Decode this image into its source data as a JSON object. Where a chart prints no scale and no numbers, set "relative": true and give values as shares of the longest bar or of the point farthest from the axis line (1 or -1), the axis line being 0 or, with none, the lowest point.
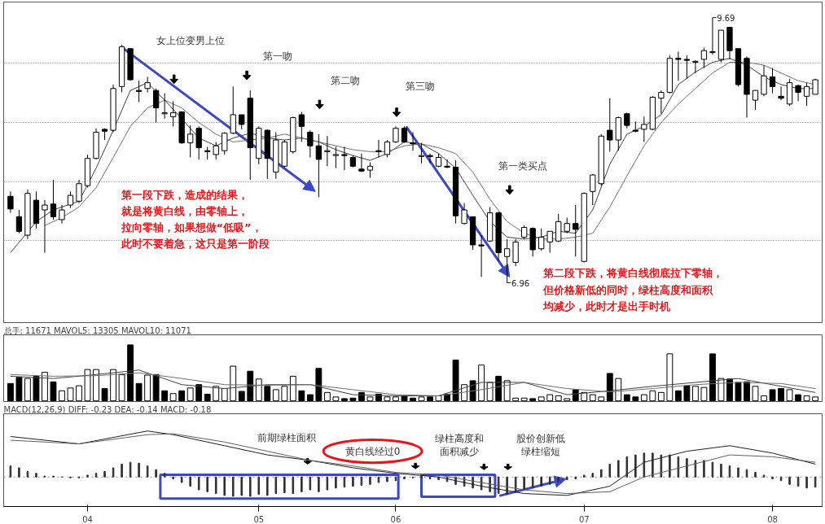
{
  "chart_data": [
    {
      "type": "candlestick",
      "categories": [
        null,
        null,
        null,
        null,
        null,
        null,
        null,
        null,
        null,
        "04",
        null,
        null,
        null,
        null,
        null,
        null,
        null,
        null,
        null,
        null,
        null,
        null,
        null,
        null,
        null,
        null,
        null,
        null,
        null,
        "05",
        null,
        null,
        null,
        null,
        null,
        null,
        null,
        null,
        null,
        null,
        null,
        null,
        null,
        null,
        null,
        "06",
        null,
        null,
        null,
        null,
        null,
        null,
        null,
        null,
        null,
        null,
        null,
        null,
        null,
        null,
        null,
        null,
        null,
        null,
        null,
        null,
        null,
        "07",
        null,
        null,
        null,
        null,
        null,
        null,
        null,
        null,
        null,
        null,
        null,
        null,
        null,
        null,
        null,
        null,
        null,
        null,
        null,
        null,
        null,
        "08",
        null,
        null,
        null,
        null,
        null
      ],
      "ohlc": [
        [
          7.85,
          7.9,
          7.68,
          7.72
        ],
        [
          7.64,
          7.71,
          7.47,
          7.49
        ],
        [
          7.45,
          7.92,
          7.41,
          7.88
        ],
        [
          7.81,
          7.9,
          7.52,
          7.57
        ],
        [
          7.71,
          7.81,
          7.27,
          7.76
        ],
        [
          7.77,
          8.02,
          7.61,
          7.64
        ],
        [
          7.61,
          7.76,
          7.57,
          7.71
        ],
        [
          7.76,
          7.9,
          7.73,
          7.86
        ],
        [
          7.8,
          8.02,
          7.78,
          7.98
        ],
        [
          7.96,
          8.28,
          7.94,
          8.24
        ],
        [
          8.24,
          8.55,
          8.23,
          8.51
        ],
        [
          8.54,
          8.55,
          8.43,
          8.52
        ],
        [
          8.53,
          9.0,
          8.51,
          8.96
        ],
        [
          8.98,
          9.41,
          8.92,
          9.39
        ],
        [
          9.37,
          9.37,
          9.04,
          9.05
        ],
        [
          8.94,
          9.04,
          8.82,
          8.93
        ],
        [
          8.96,
          9.08,
          8.92,
          9.02
        ],
        [
          8.94,
          8.96,
          8.61,
          8.76
        ],
        [
          8.7,
          8.91,
          8.65,
          8.71
        ],
        [
          8.67,
          8.83,
          8.57,
          8.71
        ],
        [
          8.72,
          8.72,
          8.39,
          8.4
        ],
        [
          8.4,
          8.58,
          8.25,
          8.49
        ],
        [
          8.55,
          8.57,
          8.23,
          8.35
        ],
        [
          8.32,
          8.36,
          8.23,
          8.31
        ],
        [
          8.28,
          8.41,
          8.23,
          8.37
        ],
        [
          8.32,
          8.51,
          8.28,
          8.5
        ],
        [
          8.5,
          8.98,
          8.49,
          8.69
        ],
        [
          8.69,
          8.69,
          8.54,
          8.59
        ],
        [
          8.86,
          8.94,
          8.02,
          8.35
        ],
        [
          8.24,
          8.57,
          8.18,
          8.55
        ],
        [
          8.53,
          8.54,
          8.03,
          8.24
        ],
        [
          8.1,
          8.51,
          8.03,
          8.43
        ],
        [
          8.16,
          8.43,
          8.15,
          8.41
        ],
        [
          8.31,
          8.67,
          8.29,
          8.66
        ],
        [
          8.69,
          8.72,
          8.41,
          8.57
        ],
        [
          8.51,
          8.53,
          8.25,
          8.37
        ],
        [
          8.37,
          8.49,
          7.84,
          8.23
        ],
        [
          8.31,
          8.47,
          8.16,
          8.32
        ],
        [
          8.27,
          8.36,
          8.14,
          8.28
        ],
        [
          8.28,
          8.36,
          8.12,
          8.27
        ],
        [
          8.25,
          8.27,
          8.15,
          8.16
        ],
        [
          8.13,
          8.29,
          8.1,
          8.11
        ],
        [
          8.12,
          8.2,
          8.04,
          8.16
        ],
        [
          8.32,
          8.43,
          8.25,
          8.31
        ],
        [
          8.28,
          8.43,
          8.25,
          8.41
        ],
        [
          8.41,
          8.57,
          8.4,
          8.55
        ],
        [
          8.55,
          8.57,
          8.4,
          8.41
        ],
        [
          8.4,
          8.51,
          8.32,
          8.39
        ],
        [
          8.26,
          8.4,
          8.19,
          8.27
        ],
        [
          8.27,
          8.29,
          8.19,
          8.26
        ],
        [
          8.16,
          8.29,
          8.15,
          8.25
        ],
        [
          8.16,
          8.23,
          8.14,
          8.15
        ],
        [
          8.15,
          8.22,
          7.57,
          7.65
        ],
        [
          7.57,
          7.78,
          7.56,
          7.71
        ],
        [
          7.64,
          7.64,
          7.3,
          7.35
        ],
        [
          7.35,
          7.45,
          7.02,
          7.34
        ],
        [
          7.39,
          7.74,
          7.38,
          7.68
        ],
        [
          7.68,
          7.69,
          7.18,
          7.27
        ],
        [
          7.23,
          7.41,
          6.96,
          7.31
        ],
        [
          7.17,
          7.41,
          7.13,
          7.38
        ],
        [
          7.43,
          7.55,
          7.41,
          7.53
        ],
        [
          7.52,
          7.53,
          7.23,
          7.3
        ],
        [
          7.31,
          7.52,
          7.29,
          7.43
        ],
        [
          7.38,
          7.49,
          7.27,
          7.49
        ],
        [
          7.39,
          7.67,
          7.38,
          7.59
        ],
        [
          7.49,
          7.63,
          7.47,
          7.57
        ],
        [
          7.57,
          7.76,
          7.23,
          7.51
        ],
        [
          7.18,
          7.89,
          7.17,
          7.88
        ],
        [
          7.9,
          8.08,
          7.76,
          8.07
        ],
        [
          7.98,
          8.49,
          7.96,
          8.47
        ],
        [
          8.53,
          8.86,
          8.31,
          8.43
        ],
        [
          8.43,
          8.67,
          8.32,
          8.66
        ],
        [
          8.7,
          8.71,
          8.55,
          8.58
        ],
        [
          8.53,
          8.62,
          8.51,
          8.52
        ],
        [
          8.54,
          8.67,
          8.41,
          8.59
        ],
        [
          8.54,
          8.88,
          8.53,
          8.87
        ],
        [
          8.86,
          8.94,
          8.7,
          8.92
        ],
        [
          8.92,
          9.3,
          8.91,
          9.27
        ],
        [
          9.27,
          9.34,
          9.04,
          9.26
        ],
        [
          9.26,
          9.3,
          9.06,
          9.25
        ],
        [
          9.23,
          9.25,
          9.12,
          9.24
        ],
        [
          9.26,
          9.38,
          9.17,
          9.35
        ],
        [
          9.33,
          9.69,
          9.31,
          9.34
        ],
        [
          9.26,
          9.56,
          9.23,
          9.56
        ],
        [
          9.59,
          9.59,
          9.26,
          9.35
        ],
        [
          9.37,
          9.37,
          8.98,
          9.0
        ],
        [
          9.27,
          9.29,
          8.66,
          8.9
        ],
        [
          8.84,
          8.94,
          8.74,
          8.94
        ],
        [
          8.9,
          9.2,
          8.88,
          9.09
        ],
        [
          9.08,
          9.17,
          8.91,
          8.98
        ],
        [
          8.88,
          8.98,
          8.84,
          8.86
        ],
        [
          8.8,
          9.06,
          8.78,
          9.02
        ],
        [
          8.99,
          9.0,
          8.83,
          8.92
        ],
        [
          8.88,
          9.02,
          8.78,
          8.98
        ],
        [
          8.9,
          9.06,
          8.9,
          9.05
        ]
      ],
      "series": [
        {
          "type": "line",
          "color": "#404040",
          "values": [
            7.27,
            null,
            null,
            7.59,
            null,
            7.71,
            null,
            null,
            7.8,
            null,
            8.14,
            null,
            8.53,
            null,
            8.94,
            null,
            9.02,
            null,
            8.84,
            null,
            8.65,
            null,
            8.45,
            null,
            8.37,
            null,
            8.45,
            null,
            8.5,
            null,
            8.45,
            null,
            8.43,
            null,
            8.45,
            null,
            8.41,
            null,
            8.33,
            null,
            8.27,
            null,
            8.22,
            null,
            8.29,
            null,
            8.41,
            null,
            8.39,
            null,
            8.29,
            null,
            8.14,
            null,
            7.86,
            null,
            7.59,
            null,
            7.43,
            null,
            7.41,
            null,
            7.43,
            null,
            7.49,
            null,
            7.47,
            null,
            7.71,
            null,
            8.18,
            null,
            8.49,
            null,
            8.57,
            null,
            8.69,
            null,
            9.0,
            null,
            9.13,
            null,
            9.23,
            null,
            9.27,
            null,
            9.2,
            null,
            9.08,
            null,
            9.0,
            null,
            8.96,
            null,
            8.96
          ]
        },
        {
          "type": "line",
          "color": "#707070",
          "values": [
            null,
            null,
            null,
            null,
            7.55,
            null,
            7.63,
            null,
            7.74,
            null,
            7.94,
            null,
            8.25,
            null,
            8.57,
            null,
            8.76,
            null,
            8.84,
            null,
            8.76,
            null,
            8.61,
            null,
            8.49,
            null,
            8.41,
            null,
            8.43,
            null,
            8.45,
            null,
            8.49,
            null,
            8.45,
            null,
            8.41,
            null,
            8.37,
            null,
            8.33,
            null,
            8.31,
            null,
            8.31,
            null,
            8.37,
            null,
            8.39,
            null,
            8.35,
            null,
            8.29,
            null,
            8.1,
            null,
            7.82,
            null,
            7.59,
            null,
            7.47,
            null,
            7.41,
            null,
            7.41,
            null,
            7.43,
            null,
            7.47,
            null,
            7.74,
            null,
            8.06,
            null,
            8.37,
            null,
            8.61,
            null,
            8.8,
            null,
            8.96,
            null,
            9.12,
            null,
            9.23,
            null,
            9.23,
            null,
            9.2,
            null,
            9.12,
            null,
            9.04,
            null,
            9.0
          ]
        }
      ],
      "ylim": [
        6.55,
        9.85
      ],
      "yticks": [
        {
          "value": 7.399,
          "label": null
        },
        {
          "value": 8.003,
          "label": null
        },
        {
          "value": 8.607,
          "label": null
        },
        {
          "value": 9.219,
          "label": null
        }
      ],
      "grid": "y",
      "tick_labels": false,
      "annotations": [
        "女上位变男上位",
        "第一吻",
        "第二吻",
        "第三吻",
        "第一类买点",
        "第一段下跌，造成的结果，就是将黄白线，由零轴上，拉向零轴，如果想做“低吸”，此时不要着急，这只是第一阶段",
        "第二段下跌，将黄白线彻底拉下零轴，但价格新低的同时，绿柱高度和面积均减少，此时才是出手时机",
        "9.69",
        "6.96"
      ]
    },
    {
      "type": "bar",
      "title": "总手: 11671 MAVOL5: 13305 MAVOL10: 11071",
      "relative": true,
      "categories": [
        null,
        null,
        null,
        null,
        null,
        null,
        null,
        null,
        null,
        "04",
        null,
        null,
        null,
        null,
        null,
        null,
        null,
        null,
        null,
        null,
        null,
        null,
        null,
        null,
        null,
        null,
        null,
        null,
        null,
        "05",
        null,
        null,
        null,
        null,
        null,
        null,
        null,
        null,
        null,
        null,
        null,
        null,
        null,
        null,
        null,
        "06",
        null,
        null,
        null,
        null,
        null,
        null,
        null,
        null,
        null,
        null,
        null,
        null,
        null,
        null,
        null,
        null,
        null,
        null,
        null,
        null,
        null,
        "07",
        null,
        null,
        null,
        null,
        null,
        null,
        null,
        null,
        null,
        null,
        null,
        null,
        null,
        null,
        null,
        null,
        null,
        null,
        null,
        null,
        null,
        "08",
        null,
        null,
        null,
        null,
        null
      ],
      "series": [
        {
          "type": "bar",
          "values": [
            0.31,
            0.42,
            0.4,
            0.44,
            0.51,
            0.34,
            0.18,
            0.23,
            0.27,
            0.56,
            0.56,
            0.22,
            0.56,
            0.47,
            1,
            0.31,
            0.46,
            0.47,
            0.18,
            0.13,
            0.18,
            0.23,
            0.29,
            0.12,
            0.26,
            0.22,
            0.62,
            0.17,
            0.53,
            0.39,
            0.26,
            0.2,
            0.26,
            0.44,
            0.18,
            0.11,
            0.58,
            0.15,
            0.07,
            0.04,
            0.05,
            0.15,
            0.07,
            0.12,
            0.07,
            0.07,
            0.09,
            0.05,
            0.07,
            0.07,
            0.09,
            0.12,
            0.73,
            0.29,
            0.36,
            0.64,
            0.33,
            0.44,
            0.36,
            0.05,
            0.05,
            0.04,
            0.07,
            0.11,
            0.09,
            0.04,
            0.2,
            0.15,
            0.11,
            0.07,
            0.49,
            0.4,
            0.11,
            0.07,
            0.11,
            0.18,
            0.15,
            0.84,
            0.18,
            0.27,
            0.26,
            0.24,
            0.84,
            0.4,
            0.39,
            0.33,
            0.34,
            0.26,
            0.09,
            0.2,
            0.22,
            0.2,
            0.11,
            0.09,
            0.07
          ],
          "colors": [
            "#000000",
            "#000000",
            "#ffffff",
            "#000000",
            "#ffffff",
            "#000000",
            "#ffffff",
            "#ffffff",
            "#ffffff",
            "#ffffff",
            "#ffffff",
            "#000000",
            "#ffffff",
            "#ffffff",
            "#000000",
            "#000000",
            "#ffffff",
            "#000000",
            "#000000",
            "#ffffff",
            "#000000",
            "#ffffff",
            "#000000",
            "#000000",
            "#ffffff",
            "#ffffff",
            "#ffffff",
            "#000000",
            "#000000",
            "#ffffff",
            "#000000",
            "#ffffff",
            "#ffffff",
            "#ffffff",
            "#000000",
            "#000000",
            "#000000",
            "#ffffff",
            "#ffffff",
            "#000000",
            "#000000",
            "#000000",
            "#ffffff",
            "#000000",
            "#ffffff",
            "#ffffff",
            "#000000",
            "#000000",
            "#ffffff",
            "#000000",
            "#ffffff",
            "#000000",
            "#000000",
            "#ffffff",
            "#000000",
            "#ffffff",
            "#ffffff",
            "#000000",
            "#ffffff",
            "#ffffff",
            "#ffffff",
            "#000000",
            "#ffffff",
            "#ffffff",
            "#ffffff",
            "#ffffff",
            "#000000",
            "#ffffff",
            "#ffffff",
            "#ffffff",
            "#000000",
            "#ffffff",
            "#000000",
            "#000000",
            "#ffffff",
            "#ffffff",
            "#ffffff",
            "#ffffff",
            "#000000",
            "#000000",
            "#ffffff",
            "#ffffff",
            "#000000",
            "#ffffff",
            "#000000",
            "#000000",
            "#000000",
            "#ffffff",
            "#ffffff",
            "#000000",
            "#000000",
            "#ffffff",
            "#000000",
            "#ffffff",
            "#ffffff"
          ]
        },
        {
          "type": "line",
          "color": "#404040",
          "values": [
            0.44,
            null,
            null,
            null,
            null,
            0.4,
            null,
            null,
            null,
            null,
            0.47,
            null,
            null,
            null,
            null,
            0.55,
            null,
            null,
            null,
            null,
            0.29,
            null,
            null,
            null,
            null,
            0.22,
            null,
            null,
            null,
            null,
            0.29,
            null,
            null,
            null,
            null,
            0.29,
            null,
            null,
            null,
            null,
            0.11,
            null,
            null,
            null,
            null,
            0.09,
            null,
            null,
            null,
            null,
            0.09,
            null,
            null,
            null,
            null,
            0.33,
            null,
            null,
            null,
            null,
            0.33,
            null,
            null,
            null,
            null,
            0.11,
            null,
            null,
            null,
            null,
            0.18,
            null,
            null,
            null,
            null,
            0.26,
            null,
            null,
            null,
            null,
            0.33,
            null,
            null,
            null,
            null,
            0.4,
            null,
            null,
            null,
            null,
            0.26,
            null,
            null,
            null,
            0.15
          ]
        },
        {
          "type": "line",
          "color": "#707070",
          "values": [
            0.47,
            null,
            null,
            null,
            null,
            0.44,
            null,
            null,
            null,
            null,
            0.45,
            null,
            null,
            null,
            null,
            0.5,
            null,
            null,
            null,
            null,
            0.4,
            null,
            null,
            null,
            null,
            0.29,
            null,
            null,
            null,
            null,
            0.28,
            null,
            null,
            null,
            null,
            0.29,
            null,
            null,
            null,
            null,
            0.2,
            null,
            null,
            null,
            null,
            0.11,
            null,
            null,
            null,
            null,
            0.09,
            null,
            null,
            null,
            null,
            0.2,
            null,
            null,
            null,
            null,
            0.33,
            null,
            null,
            null,
            null,
            0.22,
            null,
            null,
            null,
            null,
            0.16,
            null,
            null,
            null,
            null,
            0.22,
            null,
            null,
            null,
            null,
            0.29,
            null,
            null,
            null,
            null,
            0.33,
            null,
            null,
            null,
            null,
            0.31,
            null,
            null,
            null,
            0.22
          ]
        }
      ],
      "tick_labels": false
    },
    {
      "type": "bar",
      "title": "MACD(12,26,9) DIFF: -0.23 DEA: -0.14 MACD: -0.18",
      "relative": true,
      "categories": [
        null,
        null,
        null,
        null,
        null,
        null,
        null,
        null,
        null,
        "04",
        null,
        null,
        null,
        null,
        null,
        null,
        null,
        null,
        null,
        null,
        null,
        null,
        null,
        null,
        null,
        null,
        null,
        null,
        null,
        "05",
        null,
        null,
        null,
        null,
        null,
        null,
        null,
        null,
        null,
        null,
        null,
        null,
        null,
        null,
        null,
        "06",
        null,
        null,
        null,
        null,
        null,
        null,
        null,
        null,
        null,
        null,
        null,
        null,
        null,
        null,
        null,
        null,
        null,
        null,
        null,
        null,
        null,
        "07",
        null,
        null,
        null,
        null,
        null,
        null,
        null,
        null,
        null,
        null,
        null,
        null,
        null,
        null,
        null,
        null,
        null,
        null,
        null,
        null,
        null,
        "08",
        null,
        null,
        null,
        null,
        null
      ],
      "series": [
        {
          "type": "bar",
          "color": "#303030",
          "values": [
            0.24,
            0.2,
            0.12,
            0.08,
            0.02,
            0.02,
            0,
            -0.02,
            -0.02,
            0.04,
            0.08,
            0.12,
            0.2,
            0.28,
            0.32,
            0.3,
            0.24,
            0.16,
            0.08,
            -0.04,
            -0.12,
            -0.2,
            -0.28,
            -0.32,
            -0.36,
            -0.4,
            -0.42,
            -0.4,
            -0.42,
            -0.38,
            -0.4,
            -0.36,
            -0.34,
            -0.36,
            -0.32,
            -0.28,
            -0.32,
            -0.28,
            -0.24,
            -0.22,
            -0.2,
            -0.18,
            -0.16,
            -0.12,
            -0.1,
            -0.08,
            -0.04,
            -0.02,
            -0.02,
            -0.04,
            -0.06,
            -0.1,
            -0.16,
            -0.2,
            -0.24,
            -0.28,
            -0.32,
            -0.36,
            -0.38,
            -0.32,
            -0.28,
            -0.24,
            -0.2,
            -0.16,
            -0.1,
            -0.06,
            -0.04,
            0.04,
            0.08,
            0.16,
            0.28,
            0.36,
            0.44,
            0.48,
            0.52,
            0.52,
            0.48,
            0.48,
            0.44,
            0.4,
            0.36,
            0.36,
            0.32,
            0.28,
            0.24,
            0.2,
            0.16,
            0.1,
            0.04,
            -0.04,
            -0.08,
            -0.16,
            -0.2,
            -0.24,
            -0.22
          ]
        },
        {
          "type": "line",
          "color": "#202020",
          "values": [
            0.88,
            null,
            null,
            null,
            null,
            null,
            null,
            null,
            0.72,
            null,
            null,
            null,
            null,
            null,
            null,
            null,
            1,
            null,
            null,
            0.92,
            null,
            null,
            null,
            null,
            null,
            0.68,
            null,
            null,
            null,
            null,
            0.48,
            null,
            null,
            null,
            null,
            0.36,
            null,
            null,
            null,
            null,
            0.2,
            null,
            null,
            null,
            null,
            0.08,
            null,
            null,
            null,
            null,
            0,
            null,
            null,
            null,
            null,
            -0.2,
            null,
            null,
            null,
            null,
            -0.36,
            null,
            null,
            null,
            null,
            -0.4,
            null,
            null,
            null,
            null,
            -0.2,
            null,
            null,
            null,
            0.32,
            null,
            null,
            null,
            null,
            0.56,
            null,
            null,
            null,
            null,
            0.68,
            null,
            null,
            null,
            null,
            0.52,
            null,
            null,
            null,
            null,
            0.28
          ]
        },
        {
          "type": "line",
          "color": "#606060",
          "values": [
            0.8,
            null,
            null,
            null,
            null,
            null,
            null,
            null,
            0.72,
            null,
            null,
            null,
            null,
            null,
            null,
            null,
            0.92,
            null,
            null,
            0.94,
            null,
            null,
            null,
            null,
            null,
            0.76,
            null,
            null,
            null,
            null,
            0.56,
            null,
            null,
            null,
            null,
            0.36,
            null,
            null,
            null,
            null,
            0.24,
            null,
            null,
            null,
            null,
            0.1,
            null,
            null,
            null,
            null,
            0.04,
            null,
            null,
            null,
            null,
            -0.12,
            null,
            null,
            null,
            null,
            -0.28,
            null,
            null,
            null,
            null,
            -0.36,
            null,
            null,
            null,
            null,
            -0.32,
            null,
            null,
            null,
            0,
            null,
            null,
            null,
            null,
            0.24,
            null,
            null,
            null,
            null,
            0.48,
            null,
            null,
            null,
            null,
            0.44,
            null,
            null,
            null,
            null,
            0.32
          ]
        }
      ],
      "tick_labels": "x",
      "ref_lines": [
        {
          "axis": "y",
          "value": 0,
          "color": "#888888",
          "line_style": "dotted"
        }
      ],
      "annotations": [
        "前期绿柱面积",
        "黄白线经过0",
        "绿柱高度和面积减少",
        "股价创新低绿柱缩短"
      ]
    }
  ]
}
